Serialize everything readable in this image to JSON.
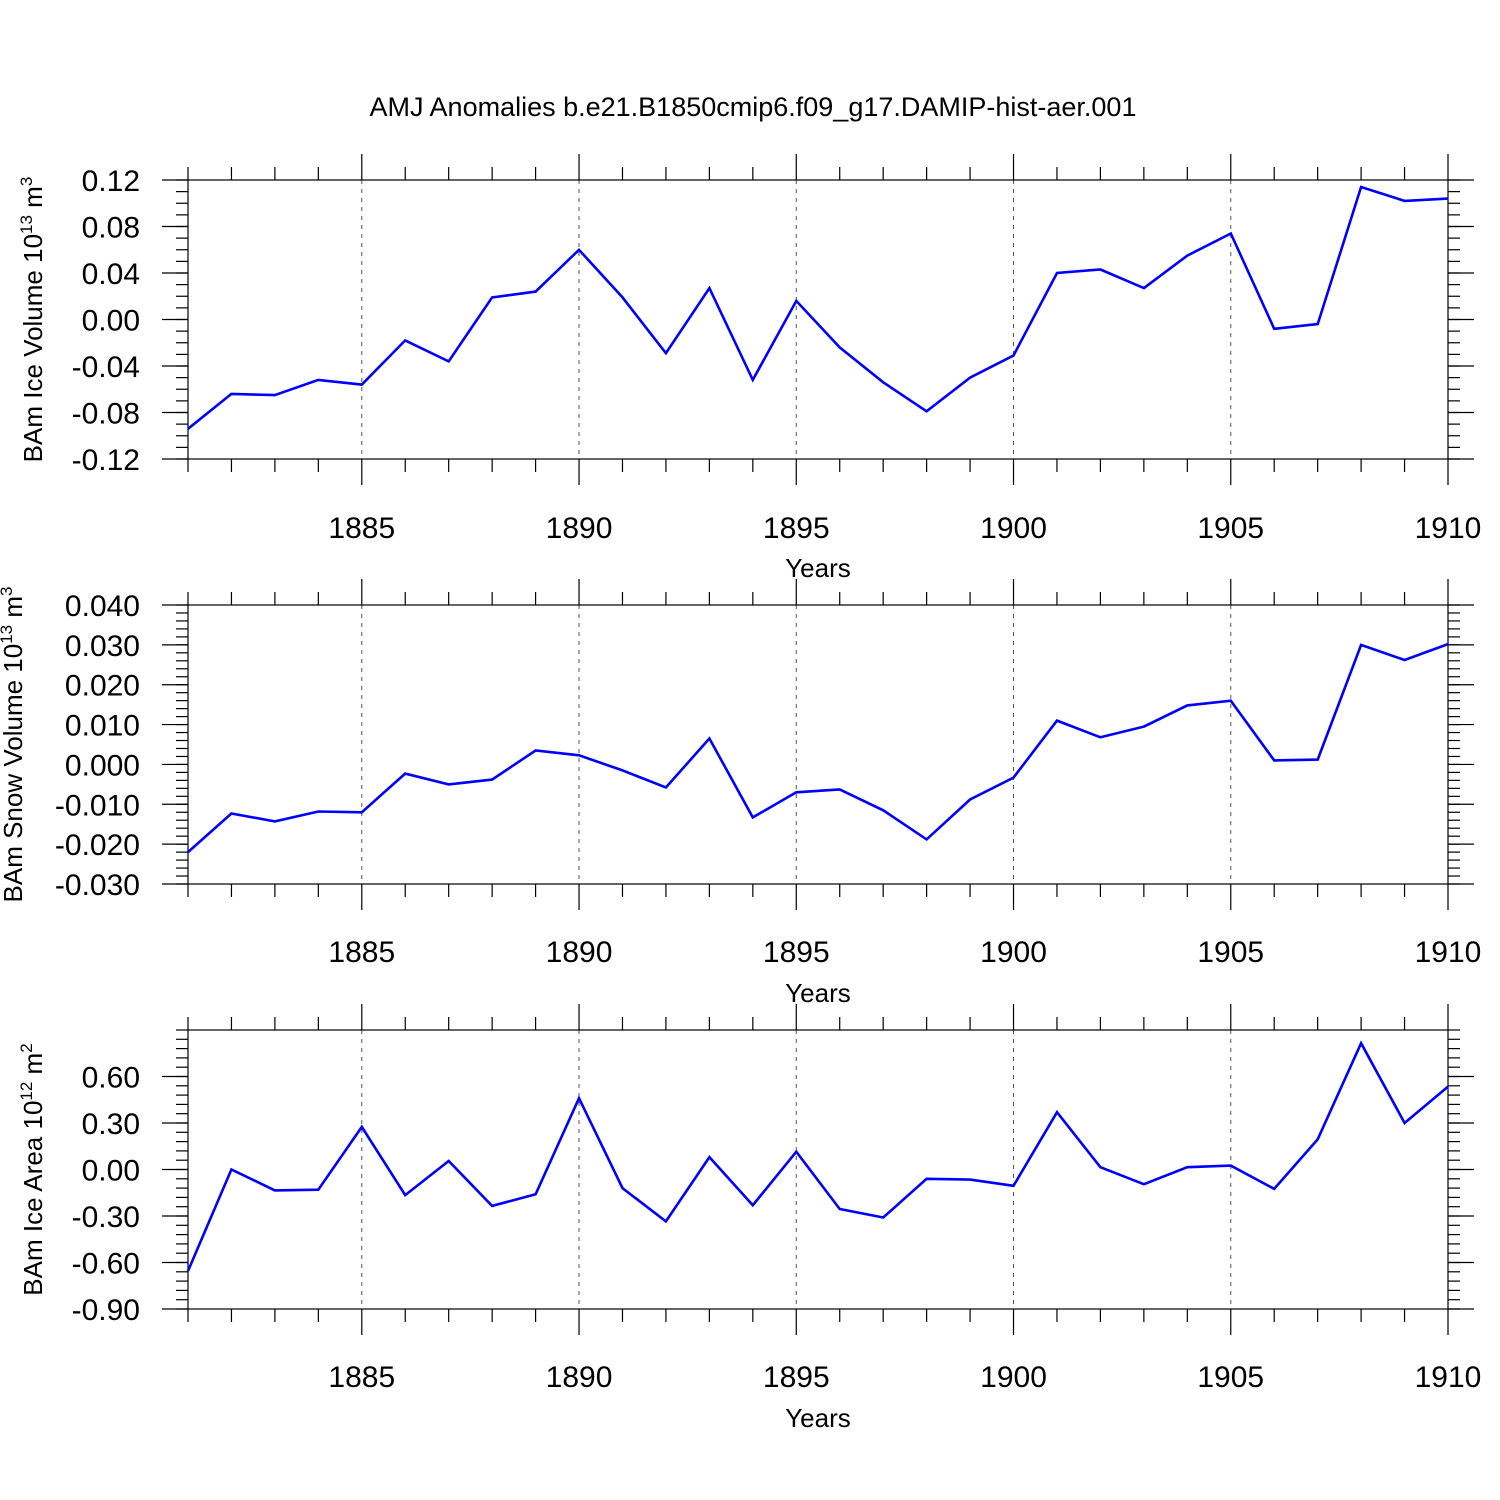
{
  "title": "AMJ Anomalies b.e21.B1850cmip6.f09_g17.DAMIP-hist-aer.001",
  "chart_data": [
    {
      "type": "line",
      "ylabel": "BAm Ice Volume 10",
      "ylabel_exp": "13",
      "ylabel_unit": " m",
      "ylabel_unit_exp": "3",
      "xlabel": "Years",
      "xlim": [
        1881,
        1910
      ],
      "ylim": [
        -0.12,
        0.12
      ],
      "yticks": [
        -0.12,
        -0.08,
        -0.04,
        0.0,
        0.04,
        0.08,
        0.12
      ],
      "ytick_labels": [
        "-0.12",
        "-0.08",
        "-0.04",
        "0.00",
        "0.04",
        "0.08",
        "0.12"
      ],
      "yminor_step": 0.01,
      "xticks": [
        1885,
        1890,
        1895,
        1900,
        1905,
        1910
      ],
      "xtick_labels": [
        "1885",
        "1890",
        "1895",
        "1900",
        "1905",
        "1910"
      ],
      "grid_x": true,
      "color": "#0000ff",
      "x": [
        1881,
        1882,
        1883,
        1884,
        1885,
        1886,
        1887,
        1888,
        1889,
        1890,
        1891,
        1892,
        1893,
        1894,
        1895,
        1896,
        1897,
        1898,
        1899,
        1900,
        1901,
        1902,
        1903,
        1904,
        1905,
        1906,
        1907,
        1908,
        1909,
        1910
      ],
      "values": [
        -0.094,
        -0.064,
        -0.065,
        -0.052,
        -0.056,
        -0.018,
        -0.036,
        0.019,
        0.024,
        0.06,
        0.019,
        -0.029,
        0.027,
        -0.052,
        0.016,
        -0.024,
        -0.054,
        -0.079,
        -0.05,
        -0.031,
        0.04,
        0.043,
        0.027,
        0.055,
        0.074,
        -0.008,
        -0.004,
        0.114,
        0.102,
        0.104
      ]
    },
    {
      "type": "line",
      "ylabel": "BAm Snow Volume 10",
      "ylabel_exp": "13",
      "ylabel_unit": " m",
      "ylabel_unit_exp": "3",
      "xlabel": "Years",
      "xlim": [
        1881,
        1910
      ],
      "ylim": [
        -0.03,
        0.04
      ],
      "yticks": [
        -0.03,
        -0.02,
        -0.01,
        0.0,
        0.01,
        0.02,
        0.03,
        0.04
      ],
      "ytick_labels": [
        "-0.030",
        "-0.020",
        "-0.010",
        "0.000",
        "0.010",
        "0.020",
        "0.030",
        "0.040"
      ],
      "yminor_step": 0.002,
      "xticks": [
        1885,
        1890,
        1895,
        1900,
        1905,
        1910
      ],
      "xtick_labels": [
        "1885",
        "1890",
        "1895",
        "1900",
        "1905",
        "1910"
      ],
      "grid_x": true,
      "color": "#0000ff",
      "x": [
        1881,
        1882,
        1883,
        1884,
        1885,
        1886,
        1887,
        1888,
        1889,
        1890,
        1891,
        1892,
        1893,
        1894,
        1895,
        1896,
        1897,
        1898,
        1899,
        1900,
        1901,
        1902,
        1903,
        1904,
        1905,
        1906,
        1907,
        1908,
        1909,
        1910
      ],
      "values": [
        -0.022,
        -0.0123,
        -0.0143,
        -0.0118,
        -0.012,
        -0.0023,
        -0.005,
        -0.0038,
        0.0035,
        0.0023,
        -0.0015,
        -0.0058,
        0.0065,
        -0.0133,
        -0.007,
        -0.0063,
        -0.0115,
        -0.0188,
        -0.0088,
        -0.0033,
        0.011,
        0.0068,
        0.0095,
        0.0148,
        0.016,
        0.001,
        0.0012,
        0.03,
        0.0262,
        0.0302
      ]
    },
    {
      "type": "line",
      "ylabel": "BAm Ice Area 10",
      "ylabel_exp": "12",
      "ylabel_unit": " m",
      "ylabel_unit_exp": "2",
      "xlabel": "Years",
      "xlim": [
        1881,
        1910
      ],
      "ylim": [
        -0.9,
        0.9
      ],
      "yticks": [
        -0.9,
        -0.6,
        -0.3,
        0.0,
        0.3,
        0.6
      ],
      "ytick_labels": [
        "-0.90",
        "-0.60",
        "-0.30",
        "0.00",
        "0.30",
        "0.60"
      ],
      "yminor_step": 0.06,
      "xticks": [
        1885,
        1890,
        1895,
        1900,
        1905,
        1910
      ],
      "xtick_labels": [
        "1885",
        "1890",
        "1895",
        "1900",
        "1905",
        "1910"
      ],
      "grid_x": true,
      "color": "#0000ff",
      "x": [
        1881,
        1882,
        1883,
        1884,
        1885,
        1886,
        1887,
        1888,
        1889,
        1890,
        1891,
        1892,
        1893,
        1894,
        1895,
        1896,
        1897,
        1898,
        1899,
        1900,
        1901,
        1902,
        1903,
        1904,
        1905,
        1906,
        1907,
        1908,
        1909,
        1910
      ],
      "values": [
        -0.655,
        0.0,
        -0.135,
        -0.13,
        0.275,
        -0.165,
        0.055,
        -0.235,
        -0.16,
        0.46,
        -0.12,
        -0.335,
        0.08,
        -0.23,
        0.115,
        -0.255,
        -0.31,
        -0.06,
        -0.065,
        -0.105,
        0.37,
        0.015,
        -0.095,
        0.015,
        0.025,
        -0.125,
        0.195,
        0.815,
        0.3,
        0.535
      ]
    }
  ]
}
